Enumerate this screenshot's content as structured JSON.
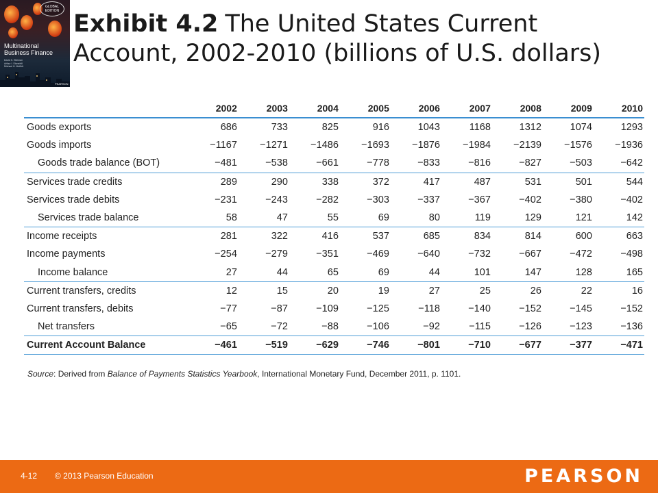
{
  "cover": {
    "badge": "GLOBAL EDITION",
    "title_line1": "Multinational",
    "title_line2": "Business Finance",
    "authors": [
      "David K. Eiteman",
      "Arthur I. Stonehill",
      "Michael H. Moffett"
    ],
    "publisher": "PEARSON"
  },
  "title": {
    "exhibit": "Exhibit 4.2",
    "text": "The United States Current Account, 2002-2010 (billions of U.S. dollars)"
  },
  "table": {
    "years": [
      "2002",
      "2003",
      "2004",
      "2005",
      "2006",
      "2007",
      "2008",
      "2009",
      "2010"
    ],
    "rows": [
      {
        "label": "Goods exports",
        "values": [
          "686",
          "733",
          "825",
          "916",
          "1043",
          "1168",
          "1312",
          "1074",
          "1293"
        ]
      },
      {
        "label": "Goods imports",
        "values": [
          "−1167",
          "−1271",
          "−1486",
          "−1693",
          "−1876",
          "−1984",
          "−2139",
          "−1576",
          "−1936"
        ]
      },
      {
        "label": "Goods trade balance (BOT)",
        "values": [
          "−481",
          "−538",
          "−661",
          "−778",
          "−833",
          "−816",
          "−827",
          "−503",
          "−642"
        ]
      },
      {
        "label": "Services trade credits",
        "values": [
          "289",
          "290",
          "338",
          "372",
          "417",
          "487",
          "531",
          "501",
          "544"
        ]
      },
      {
        "label": "Services trade debits",
        "values": [
          "−231",
          "−243",
          "−282",
          "−303",
          "−337",
          "−367",
          "−402",
          "−380",
          "−402"
        ]
      },
      {
        "label": "Services trade balance",
        "values": [
          "58",
          "47",
          "55",
          "69",
          "80",
          "119",
          "129",
          "121",
          "142"
        ]
      },
      {
        "label": "Income receipts",
        "values": [
          "281",
          "322",
          "416",
          "537",
          "685",
          "834",
          "814",
          "600",
          "663"
        ]
      },
      {
        "label": "Income payments",
        "values": [
          "−254",
          "−279",
          "−351",
          "−469",
          "−640",
          "−732",
          "−667",
          "−472",
          "−498"
        ]
      },
      {
        "label": "Income balance",
        "values": [
          "27",
          "44",
          "65",
          "69",
          "44",
          "101",
          "147",
          "128",
          "165"
        ]
      },
      {
        "label": "Current transfers, credits",
        "values": [
          "12",
          "15",
          "20",
          "19",
          "27",
          "25",
          "26",
          "22",
          "16"
        ]
      },
      {
        "label": "Current transfers, debits",
        "values": [
          "−77",
          "−87",
          "−109",
          "−125",
          "−118",
          "−140",
          "−152",
          "−145",
          "−152"
        ]
      },
      {
        "label": "Net transfers",
        "values": [
          "−65",
          "−72",
          "−88",
          "−106",
          "−92",
          "−115",
          "−126",
          "−123",
          "−136"
        ]
      },
      {
        "label": "Current Account Balance",
        "values": [
          "−461",
          "−519",
          "−629",
          "−746",
          "−801",
          "−710",
          "−677",
          "−377",
          "−471"
        ]
      }
    ]
  },
  "source": {
    "prefix": "Source",
    "text1": ": Derived from ",
    "publication": "Balance of Payments Statistics Yearbook",
    "text2": ", International Monetary Fund, December 2011, p. 1101."
  },
  "footer": {
    "slide_number": "4-12",
    "copyright": "© 2013 Pearson Education",
    "logo": "PEARSON"
  },
  "colors": {
    "footer_bg": "#ec6a14",
    "table_rule": "#3a8ed1"
  }
}
